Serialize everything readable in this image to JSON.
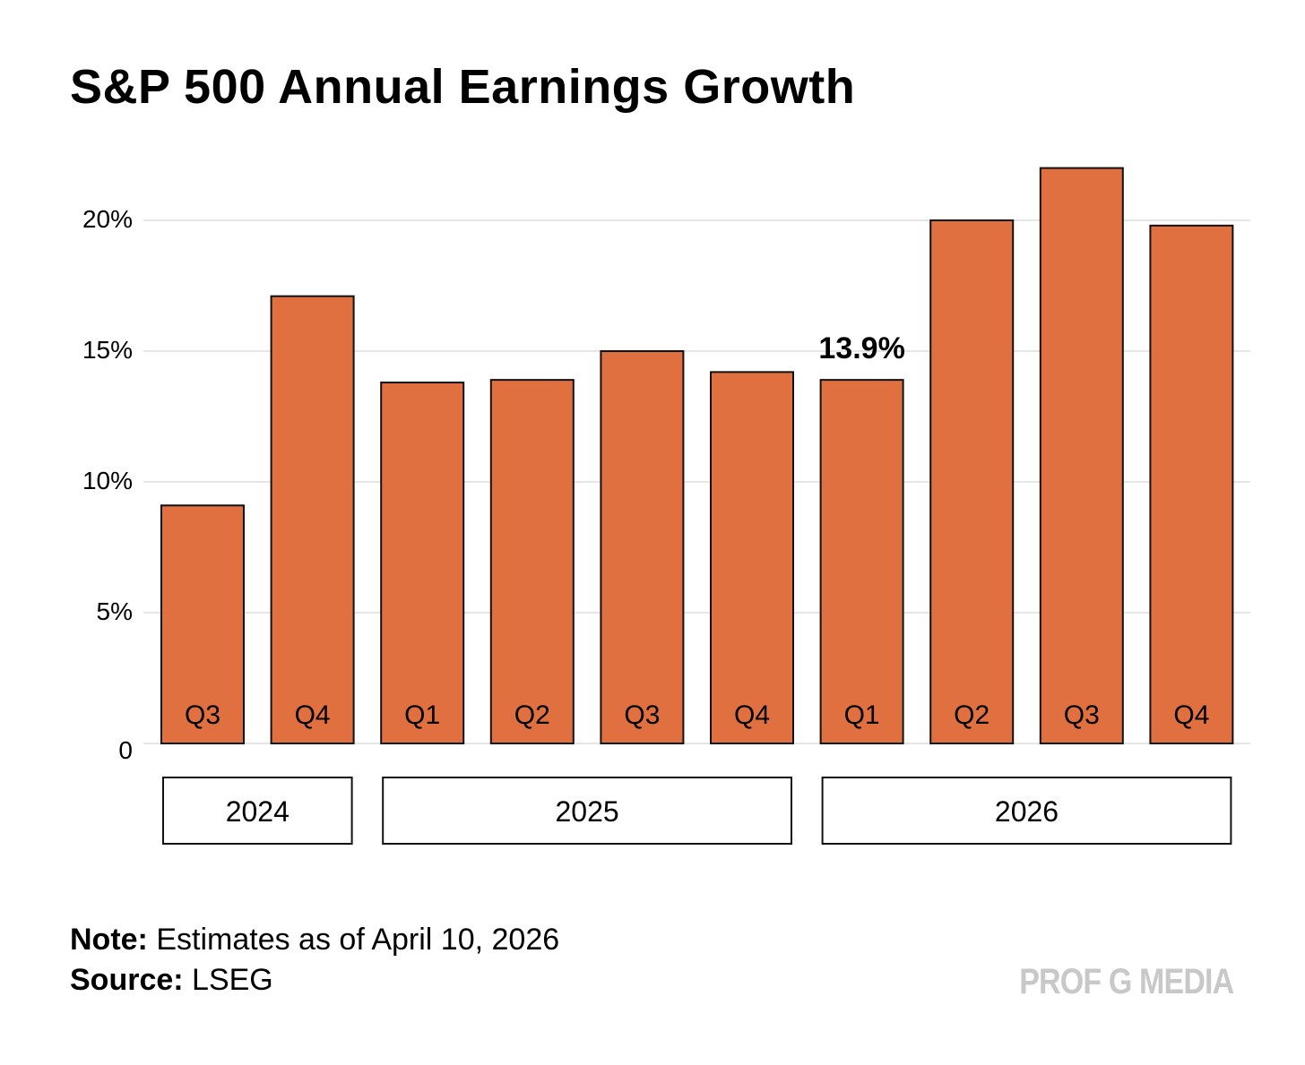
{
  "chart_data": {
    "type": "bar",
    "title": "S&P 500 Annual Earnings Growth",
    "categories": [
      "Q3",
      "Q4",
      "Q1",
      "Q2",
      "Q3",
      "Q4",
      "Q1",
      "Q2",
      "Q3",
      "Q4"
    ],
    "groups": [
      {
        "label": "2024",
        "start": 0,
        "end": 1
      },
      {
        "label": "2025",
        "start": 2,
        "end": 5
      },
      {
        "label": "2026",
        "start": 6,
        "end": 9
      }
    ],
    "values": [
      9.1,
      17.1,
      13.8,
      13.9,
      15.0,
      14.2,
      13.9,
      20.0,
      22.0,
      19.8
    ],
    "annotations": [
      {
        "index": 6,
        "text": "13.9%"
      }
    ],
    "yticks": [
      0,
      5,
      10,
      15,
      20
    ],
    "ytick_labels": [
      "0",
      "5%",
      "10%",
      "15%",
      "20%"
    ],
    "ylim": [
      0,
      22
    ],
    "xlabel": "",
    "ylabel": "",
    "grid": true,
    "bar_color": "#E07040"
  },
  "footer": {
    "note_label": "Note:",
    "note_text": "Estimates as of April 10, 2026",
    "source_label": "Source:",
    "source_text": "LSEG",
    "brand": "PROF G MEDIA"
  }
}
